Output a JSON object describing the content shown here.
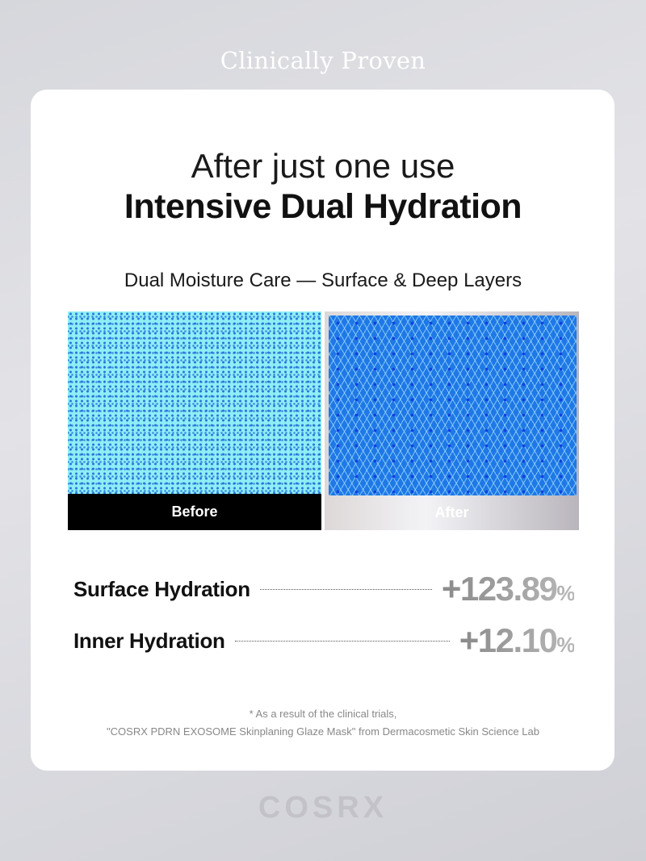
{
  "header": {
    "title": "Clinically Proven"
  },
  "card": {
    "headline_line1": "After just one use",
    "headline_line2": "Intensive Dual Hydration",
    "subtitle": "Dual Moisture Care — Surface & Deep Layers",
    "comparison": {
      "before_label": "Before",
      "after_label": "After"
    },
    "results": [
      {
        "label": "Surface Hydration",
        "value": "+123.89",
        "unit": "%"
      },
      {
        "label": "Inner Hydration",
        "value": "+12.10",
        "unit": "%"
      }
    ],
    "footnote_line1": "* As a result of the clinical trials,",
    "footnote_line2": "\"COSRX PDRN EXOSOME Skinplaning Glaze Mask\" from Dermacosmetic Skin Science Lab"
  },
  "brand": {
    "logo_text": "COSRX"
  }
}
